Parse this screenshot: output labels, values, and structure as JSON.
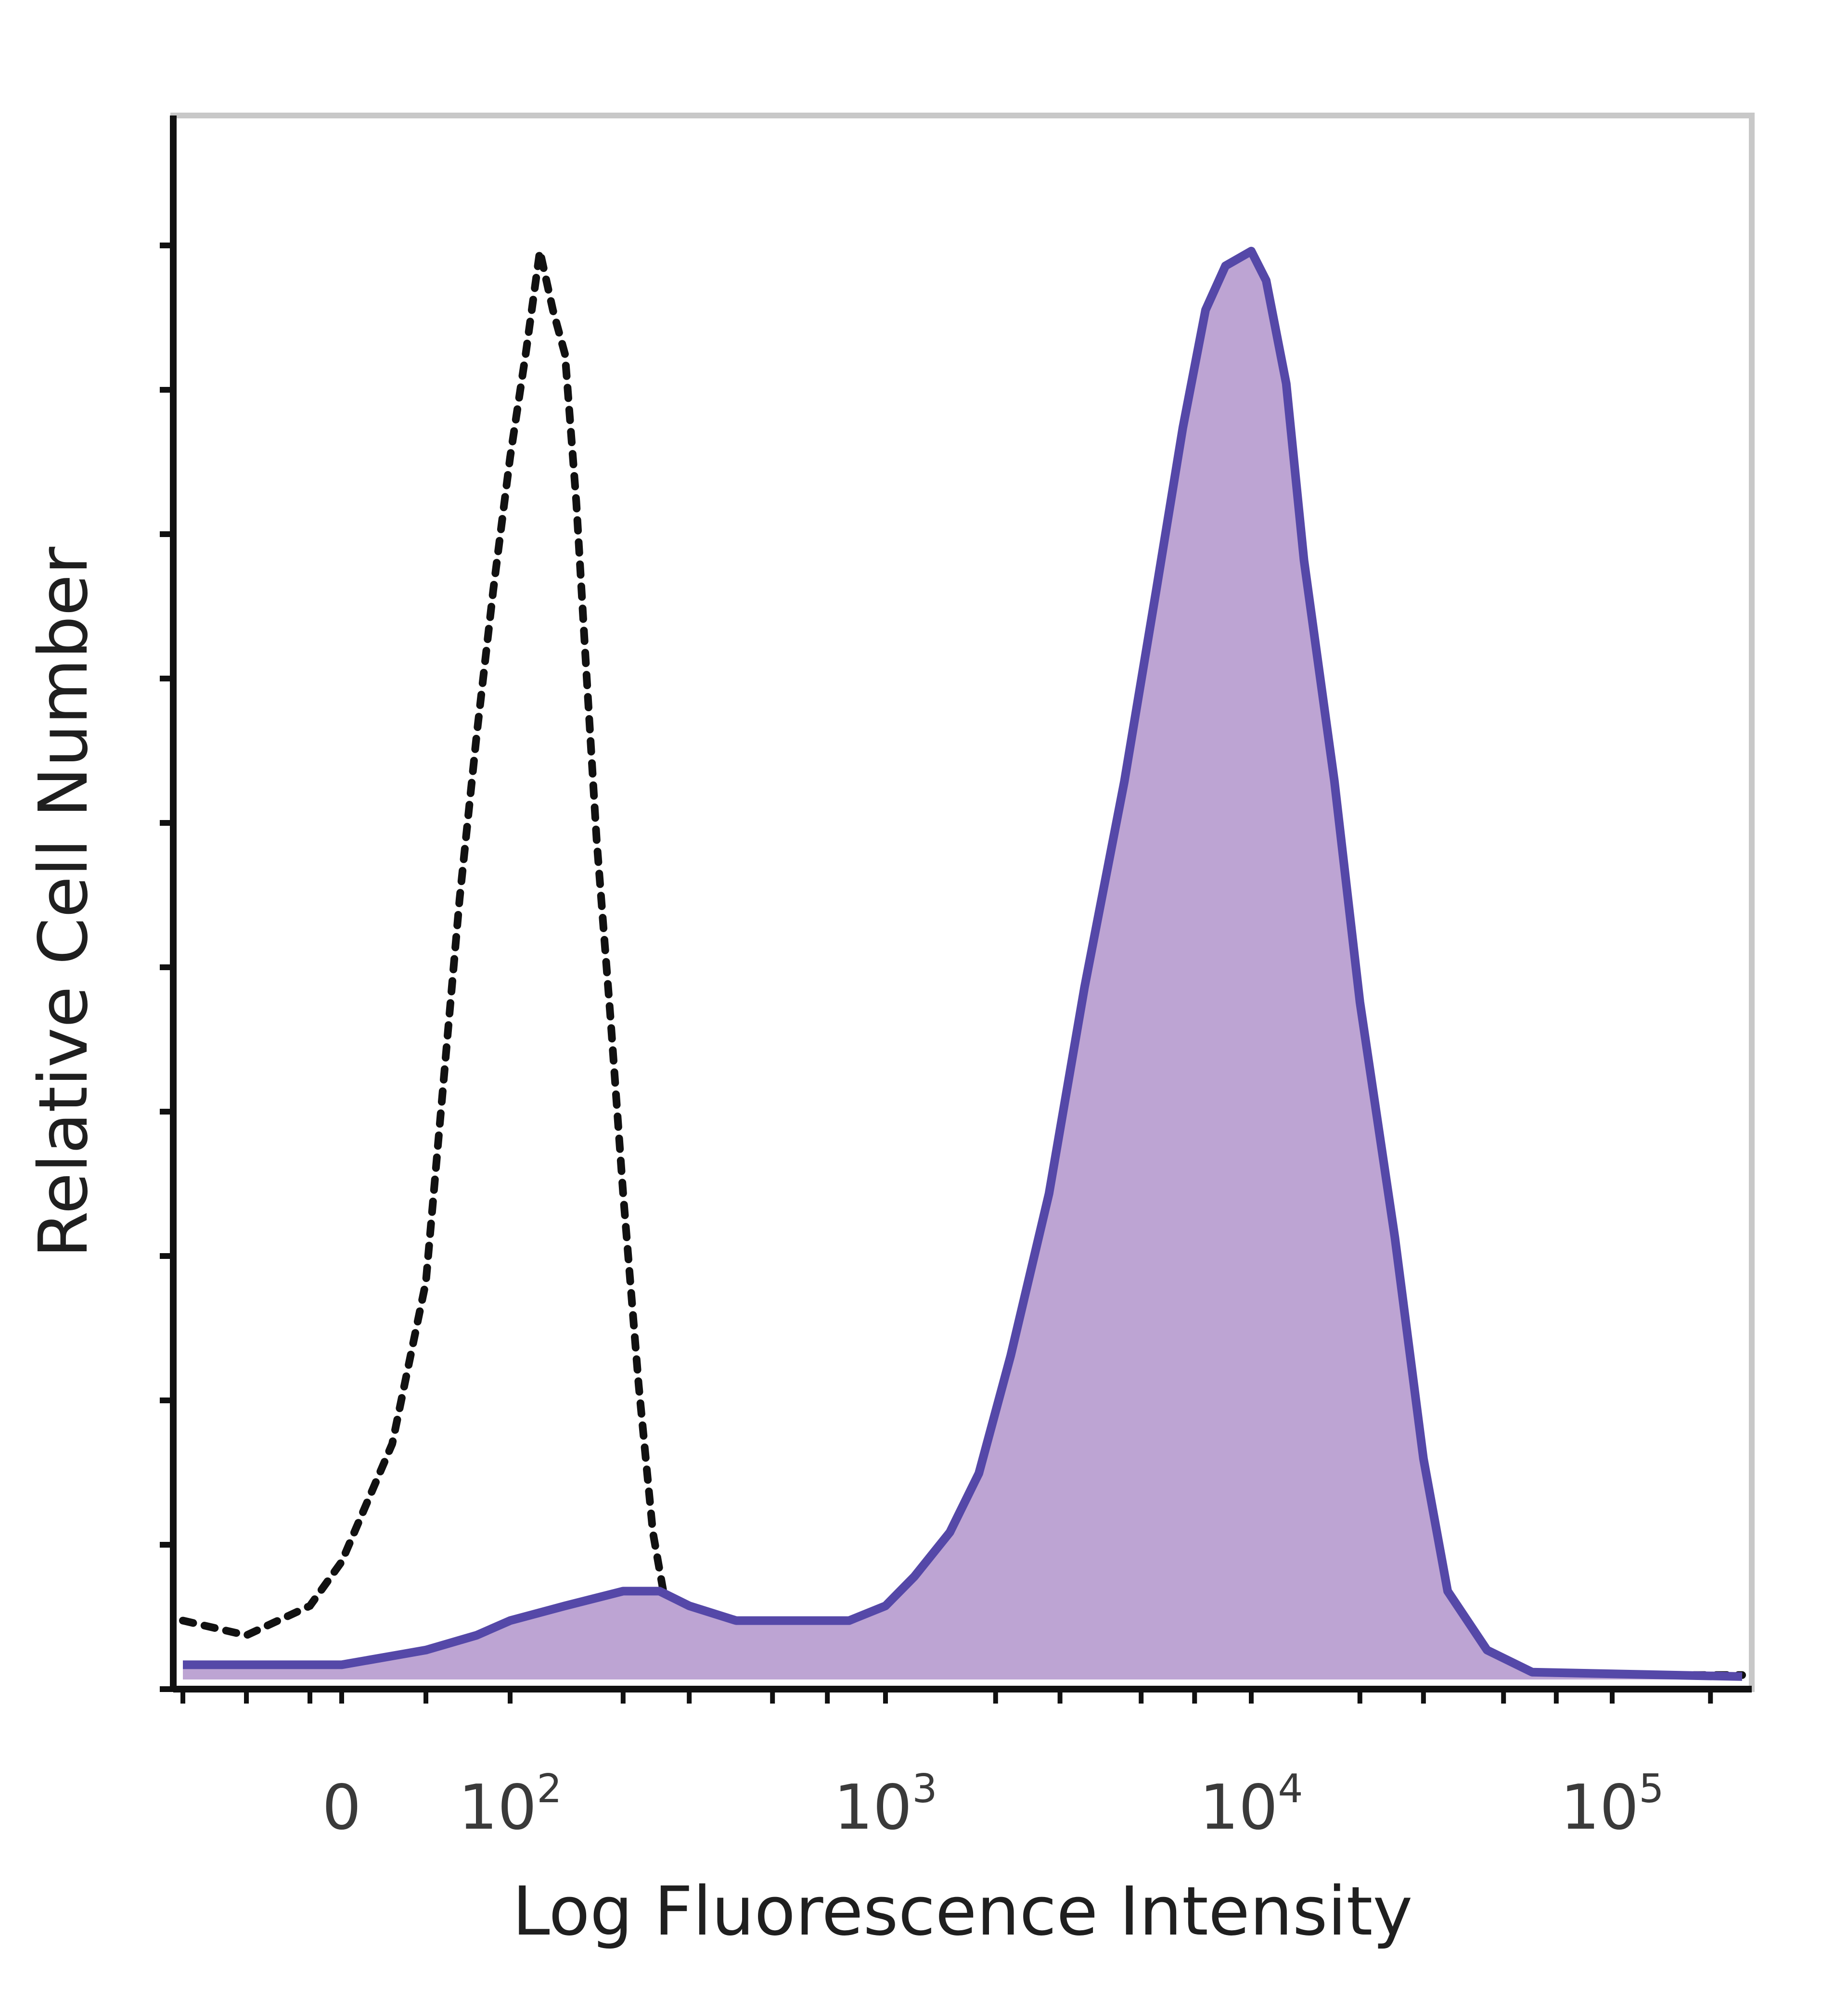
{
  "chart_data": {
    "type": "area",
    "title": "",
    "xlabel": "Log Fluorescence Intensity",
    "ylabel": "Relative Cell Number",
    "x_scale": "log",
    "xlim": [
      -500,
      250000
    ],
    "ylim": [
      0,
      1
    ],
    "grid": false,
    "legend": "none",
    "x_ticks": [
      {
        "value": 0,
        "base": "0",
        "exp": ""
      },
      {
        "value": 100,
        "base": "10",
        "exp": "2"
      },
      {
        "value": 1000,
        "base": "10",
        "exp": "3"
      },
      {
        "value": 10000,
        "base": "10",
        "exp": "4"
      },
      {
        "value": 100000,
        "base": "10",
        "exp": "5"
      }
    ],
    "series": [
      {
        "style": "dotted-line",
        "color": "#111111",
        "points": [
          [
            -500,
            0.04
          ],
          [
            -300,
            0.03
          ],
          [
            -100,
            0.05
          ],
          [
            0,
            0.08
          ],
          [
            30,
            0.16
          ],
          [
            50,
            0.27
          ],
          [
            60,
            0.4
          ],
          [
            70,
            0.53
          ],
          [
            80,
            0.64
          ],
          [
            90,
            0.74
          ],
          [
            100,
            0.83
          ],
          [
            110,
            0.9
          ],
          [
            120,
            0.97
          ],
          [
            130,
            0.93
          ],
          [
            140,
            0.9
          ],
          [
            150,
            0.8
          ],
          [
            160,
            0.68
          ],
          [
            170,
            0.57
          ],
          [
            185,
            0.45
          ],
          [
            200,
            0.33
          ],
          [
            220,
            0.2
          ],
          [
            240,
            0.1
          ],
          [
            260,
            0.05
          ],
          [
            300,
            0.02
          ],
          [
            400,
            0.01
          ],
          [
            600,
            0.005
          ],
          [
            1000,
            0.003
          ],
          [
            10000,
            0.003
          ],
          [
            250000,
            0.003
          ]
        ]
      },
      {
        "style": "filled-area",
        "color": "#5548a8",
        "fill": "#bda4d3",
        "points": [
          [
            -500,
            0.01
          ],
          [
            0,
            0.01
          ],
          [
            50,
            0.02
          ],
          [
            80,
            0.03
          ],
          [
            100,
            0.04
          ],
          [
            140,
            0.05
          ],
          [
            200,
            0.06
          ],
          [
            250,
            0.06
          ],
          [
            300,
            0.05
          ],
          [
            400,
            0.04
          ],
          [
            600,
            0.04
          ],
          [
            800,
            0.04
          ],
          [
            1000,
            0.05
          ],
          [
            1200,
            0.07
          ],
          [
            1500,
            0.1
          ],
          [
            1800,
            0.14
          ],
          [
            2200,
            0.22
          ],
          [
            2800,
            0.33
          ],
          [
            3500,
            0.47
          ],
          [
            4500,
            0.61
          ],
          [
            5500,
            0.74
          ],
          [
            6500,
            0.85
          ],
          [
            7500,
            0.93
          ],
          [
            8500,
            0.96
          ],
          [
            10000,
            0.97
          ],
          [
            11000,
            0.95
          ],
          [
            12500,
            0.88
          ],
          [
            14000,
            0.76
          ],
          [
            17000,
            0.61
          ],
          [
            20000,
            0.46
          ],
          [
            25000,
            0.3
          ],
          [
            30000,
            0.15
          ],
          [
            35000,
            0.06
          ],
          [
            45000,
            0.02
          ],
          [
            60000,
            0.005
          ],
          [
            250000,
            0.002
          ]
        ]
      }
    ]
  }
}
